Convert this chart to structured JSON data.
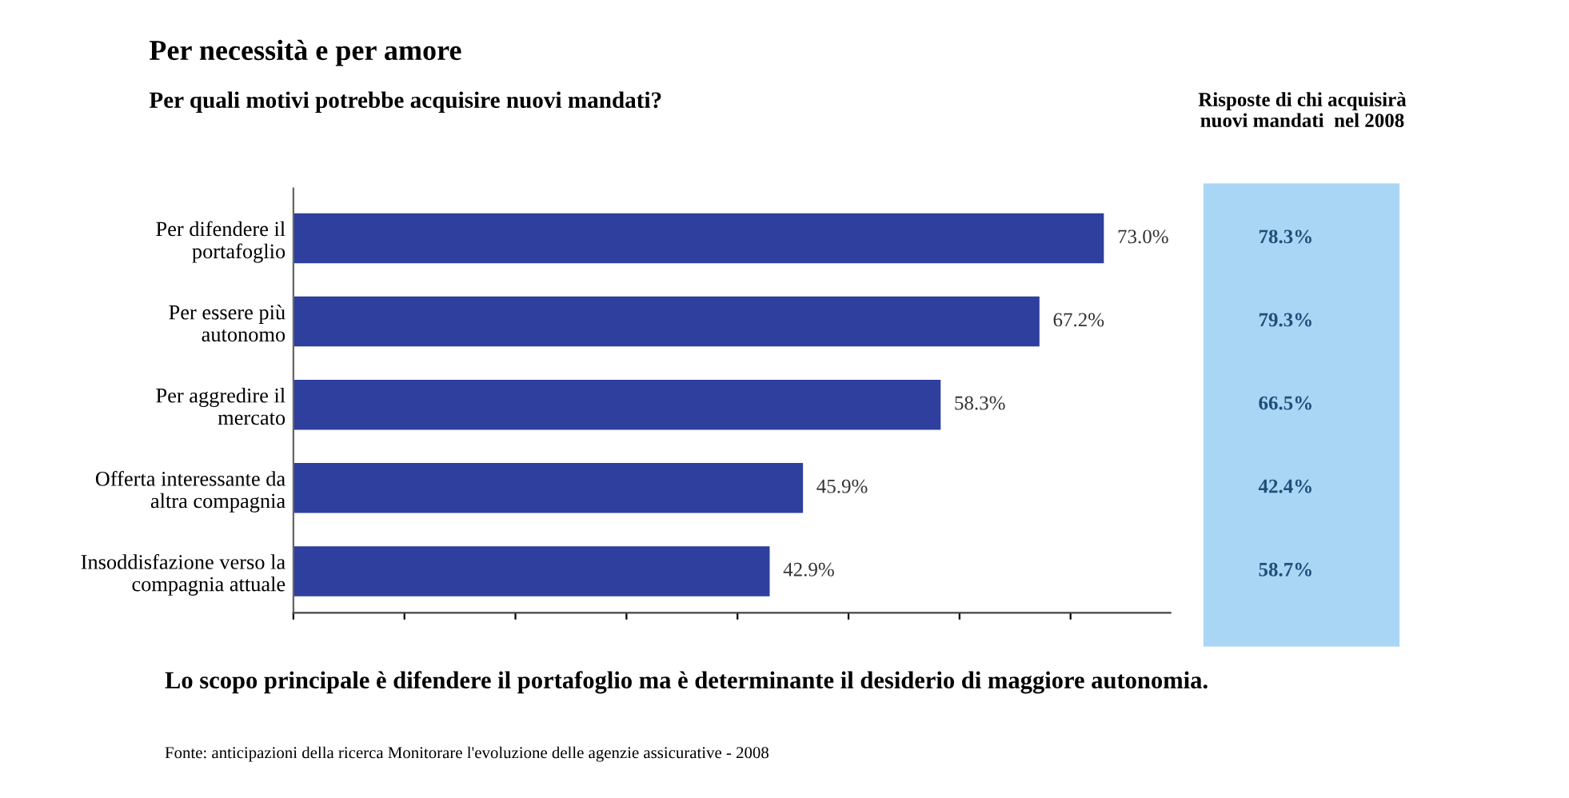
{
  "chart_data": [
    {
      "type": "bar",
      "orientation": "horizontal",
      "title": "Per necessità e per amore",
      "subtitle": "Per quali motivi potrebbe acquisire nuovi mandati?",
      "categories": [
        "Per difendere il\nportafoglio",
        "Per essere più\nautonomo",
        "Per aggredire il\nmercato",
        "Offerta interessante da\naltra compagnia",
        "Insoddisfazione verso la\ncompagnia attuale"
      ],
      "values": [
        73.0,
        67.2,
        58.3,
        45.9,
        42.9
      ],
      "value_labels": [
        "73.0%",
        "67.2%",
        "58.3%",
        "45.9%",
        "42.9%"
      ],
      "color": "#2e3f9e",
      "xlim": [
        0,
        79
      ],
      "tick_labels": "y",
      "grid": false,
      "legend": false,
      "annotations": [
        "Lo scopo principale è difendere il portafoglio ma è determinante il desiderio di maggiore autonomia.",
        "Fonte: anticipazioni della ricerca Monitorare l'evoluzione delle agenzie assicurative - 2008"
      ]
    },
    {
      "type": "other",
      "title": "Risposte di chi acquisirà\nnuovi mandati  nel 2008",
      "annotations": [
        "78.3%",
        "79.3%",
        "66.5%",
        "42.4%",
        "58.7%"
      ]
    }
  ]
}
